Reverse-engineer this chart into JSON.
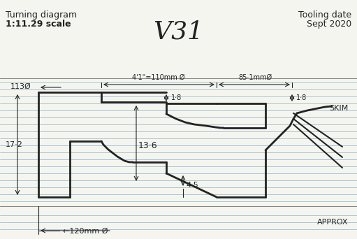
{
  "title": "V31",
  "subtitle_left": "Turning diagram\n1:11.29 scale",
  "subtitle_right": "Tooling date\nSept 2020",
  "bg_color": "#f5f5f0",
  "line_color": "#222222",
  "hatching_color": "#333333",
  "ruled_line_color": "#a0c0d0",
  "annotations": {
    "dim_113": "113Ø",
    "dim_41_110": "4'1\"=110mm Ø",
    "dim_851": "85·1mmØ",
    "dim_1_8_top": "1·8",
    "dim_1_8_side": "1·8",
    "dim_13_6": "13·6",
    "dim_17_2": "17·2",
    "dim_4_5": "4·5",
    "dim_120": "←120mm Ø",
    "skim": "SKIM",
    "approx": "APPROX"
  }
}
